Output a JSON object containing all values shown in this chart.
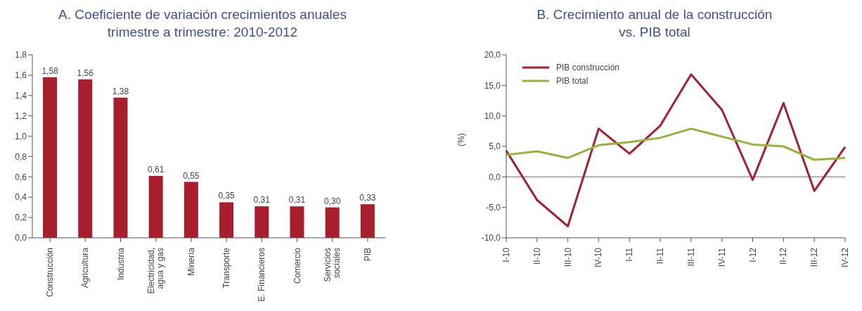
{
  "chart_data": [
    {
      "type": "bar",
      "title": "A. Coeficiente de variación crecimientos anuales\ntrimestre a trimestre: 2010-2012",
      "categories": [
        "Construcción",
        "Agricultura",
        "Industria",
        "Electricidad, agua y gas",
        "Minería",
        "Transporte",
        "E. Financieros",
        "Comercio",
        "Servicios sociales",
        "PIB"
      ],
      "values": [
        1.58,
        1.56,
        1.38,
        0.61,
        0.55,
        0.35,
        0.31,
        0.31,
        0.3,
        0.33
      ],
      "color": "#a81e2d",
      "value_labels": [
        "1,58",
        "1,56",
        "1,38",
        "0,61",
        "0,55",
        "0,35",
        "0,31",
        "0,31",
        "0,30",
        "0,33"
      ],
      "ylim": [
        0,
        1.8
      ],
      "yticks": [
        {
          "value": 0,
          "label": "0,0"
        },
        {
          "value": 0.2,
          "label": "0,2"
        },
        {
          "value": 0.4,
          "label": "0,4"
        },
        {
          "value": 0.6,
          "label": "0,6"
        },
        {
          "value": 0.8,
          "label": "0,8"
        },
        {
          "value": 1,
          "label": "1,0"
        },
        {
          "value": 1.2,
          "label": "1,2"
        },
        {
          "value": 1.4,
          "label": "1,4"
        },
        {
          "value": 1.6,
          "label": "1,6"
        },
        {
          "value": 1.8,
          "label": "1,8"
        }
      ],
      "grid": false,
      "legend": false
    },
    {
      "type": "line",
      "title": "B. Crecimiento anual de la construcción\nvs. PIB total",
      "ylabel": "(%)",
      "categories": [
        "I-10",
        "II-10",
        "III-10",
        "IV-10",
        "I-11",
        "II-11",
        "III-11",
        "IV-11",
        "I-12",
        "II-12",
        "III-12",
        "IV-12"
      ],
      "series": [
        {
          "name": "PIB construcción",
          "color": "#a81e2d",
          "values": [
            4.3,
            -3.8,
            -8.1,
            7.9,
            3.8,
            8.4,
            16.8,
            11.0,
            -0.5,
            12.1,
            -2.3,
            4.9
          ]
        },
        {
          "name": "PIB total",
          "color": "#95b33a",
          "values": [
            3.6,
            4.2,
            3.1,
            5.2,
            5.7,
            6.4,
            7.9,
            6.6,
            5.3,
            5.0,
            2.8,
            3.1
          ]
        }
      ],
      "ylim": [
        -10,
        20
      ],
      "yticks": [
        {
          "value": -10,
          "label": "-10,0"
        },
        {
          "value": -5,
          "label": "-5,0"
        },
        {
          "value": 0,
          "label": "0,0"
        },
        {
          "value": 5,
          "label": "5,0"
        },
        {
          "value": 10,
          "label": "10,0"
        },
        {
          "value": 15,
          "label": "15,0"
        },
        {
          "value": 20,
          "label": "20,0"
        }
      ],
      "ref_lines": [
        {
          "axis": "y",
          "value": 0,
          "color": "#707070"
        }
      ],
      "grid": false,
      "legend": "top left",
      "marker": "none",
      "line_style": "solid"
    }
  ]
}
